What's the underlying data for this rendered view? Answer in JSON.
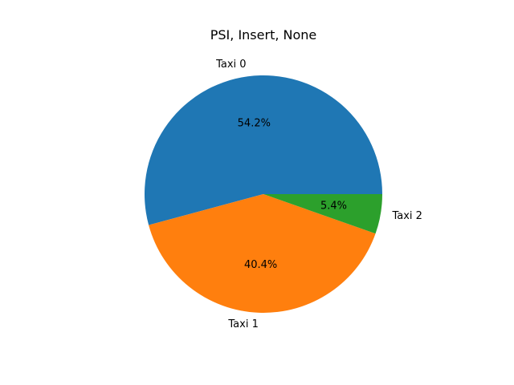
{
  "chart_data": {
    "type": "pie",
    "title": "PSI, Insert, None",
    "start_angle_deg": 0,
    "direction": "counterclockwise",
    "slices": [
      {
        "label": "Taxi 0",
        "value": 54.2,
        "pct_label": "54.2%",
        "color": "#1f77b4"
      },
      {
        "label": "Taxi 1",
        "value": 40.4,
        "pct_label": "40.4%",
        "color": "#ff7f0e"
      },
      {
        "label": "Taxi 2",
        "value": 5.4,
        "pct_label": "5.4%",
        "color": "#2ca02c"
      }
    ]
  }
}
